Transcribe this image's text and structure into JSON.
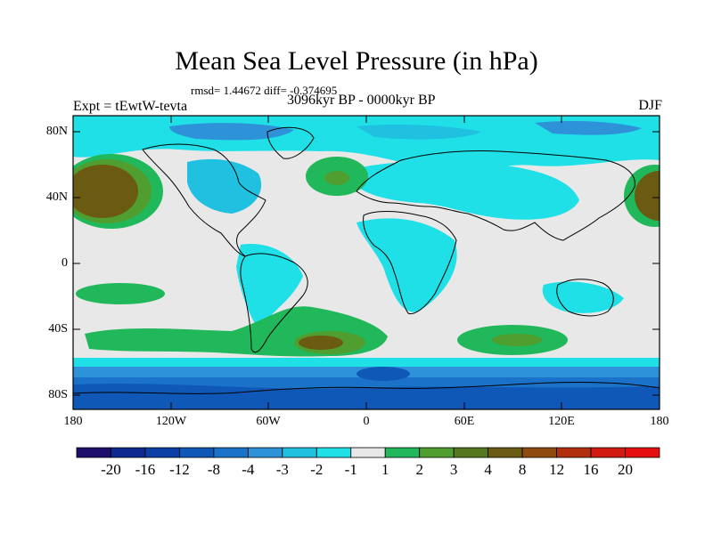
{
  "title": "Mean Sea Level Pressure (in hPa)",
  "stats": "rmsd= 1.44672  diff= -0.374695",
  "experiment": "Expt = tEwtW-tevta",
  "period": "3096kyr BP - 0000kyr BP",
  "season": "DJF",
  "lat_ticks": [
    "80N",
    "40N",
    "0",
    "40S",
    "80S"
  ],
  "lon_ticks": [
    "180",
    "120W",
    "60W",
    "0",
    "60E",
    "120E",
    "180"
  ],
  "colorbar": {
    "labels": [
      "-20",
      "-16",
      "-12",
      "-8",
      "-4",
      "-3",
      "-2",
      "-1",
      "1",
      "2",
      "3",
      "4",
      "8",
      "12",
      "16",
      "20"
    ],
    "colors": [
      "#1d0f6b",
      "#0c2a8f",
      "#0b3fa6",
      "#0f58b8",
      "#1a73c9",
      "#2e92d8",
      "#1fc0e0",
      "#1ee0e6",
      "#e8e8e8",
      "#20b85a",
      "#4f9e2f",
      "#55771d",
      "#6b5a12",
      "#8f4a0f",
      "#b22f0e",
      "#d21a10",
      "#e60f0f"
    ]
  }
}
